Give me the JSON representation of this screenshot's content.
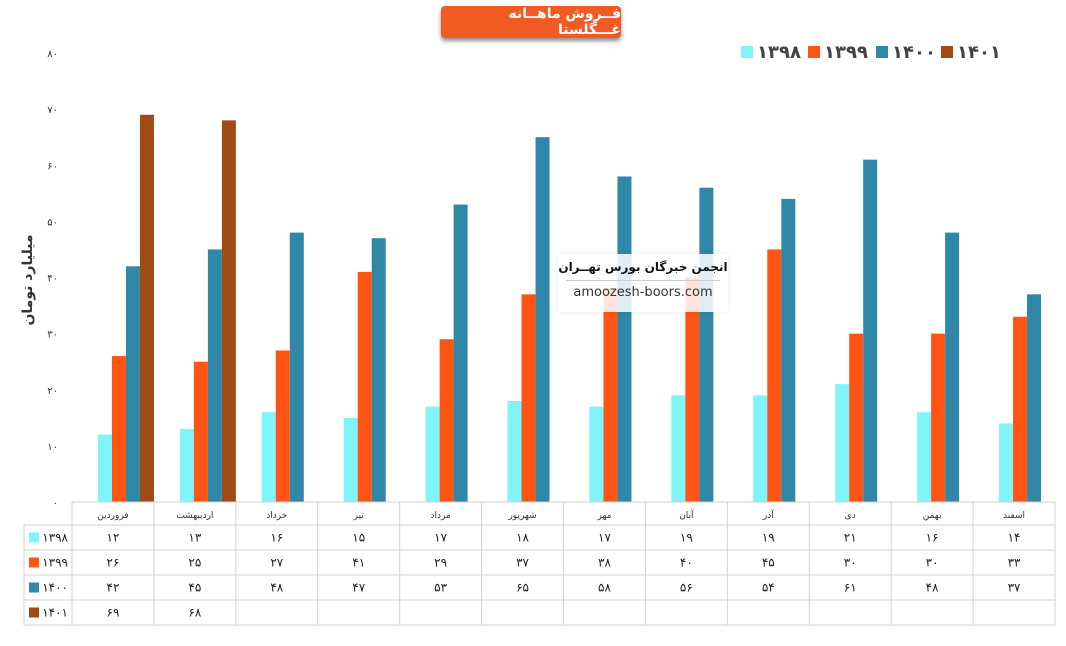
{
  "chart_data": {
    "type": "bar",
    "title": "فــروش ماهــانه غـــگلستا",
    "ylabel": "میلیارد تومان",
    "ylim": [
      0,
      80
    ],
    "yticks": [
      "۰",
      "۱۰",
      "۲۰",
      "۳۰",
      "۴۰",
      "۵۰",
      "۶۰",
      "۷۰",
      "۸۰"
    ],
    "legend_position": "top-right",
    "grid": false,
    "categories": [
      "فروردین",
      "اردیبهشت",
      "خرداد",
      "تیر",
      "مرداد",
      "شهریور",
      "مهر",
      "آبان",
      "آذر",
      "دی",
      "بهمن",
      "اسفند"
    ],
    "series": [
      {
        "name": "۱۳۹۸",
        "color": "#7ff5f9",
        "values": [
          12,
          13,
          16,
          15,
          17,
          18,
          17,
          19,
          19,
          21,
          16,
          14
        ],
        "labels": [
          "۱۲",
          "۱۳",
          "۱۶",
          "۱۵",
          "۱۷",
          "۱۸",
          "۱۷",
          "۱۹",
          "۱۹",
          "۲۱",
          "۱۶",
          "۱۴"
        ]
      },
      {
        "name": "۱۳۹۹",
        "color": "#ff5413",
        "values": [
          26,
          25,
          27,
          41,
          29,
          37,
          38,
          40,
          45,
          30,
          30,
          33
        ],
        "labels": [
          "۲۶",
          "۲۵",
          "۲۷",
          "۴۱",
          "۲۹",
          "۳۷",
          "۳۸",
          "۴۰",
          "۴۵",
          "۳۰",
          "۳۰",
          "۳۳"
        ]
      },
      {
        "name": "۱۴۰۰",
        "color": "#2f88a8",
        "values": [
          42,
          45,
          48,
          47,
          53,
          65,
          58,
          56,
          54,
          61,
          48,
          37
        ],
        "labels": [
          "۴۲",
          "۴۵",
          "۴۸",
          "۴۷",
          "۵۳",
          "۶۵",
          "۵۸",
          "۵۶",
          "۵۴",
          "۶۱",
          "۴۸",
          "۳۷"
        ]
      },
      {
        "name": "۱۴۰۱",
        "color": "#a14a14",
        "values": [
          69,
          68,
          null,
          null,
          null,
          null,
          null,
          null,
          null,
          null,
          null,
          null
        ],
        "labels": [
          "۶۹",
          "۶۸",
          "",
          "",
          "",
          "",
          "",
          "",
          "",
          "",
          "",
          ""
        ]
      }
    ]
  },
  "watermark": {
    "title": "انجمن خبرگان بورس تهــران",
    "url": "amoozesh-boors.com"
  }
}
